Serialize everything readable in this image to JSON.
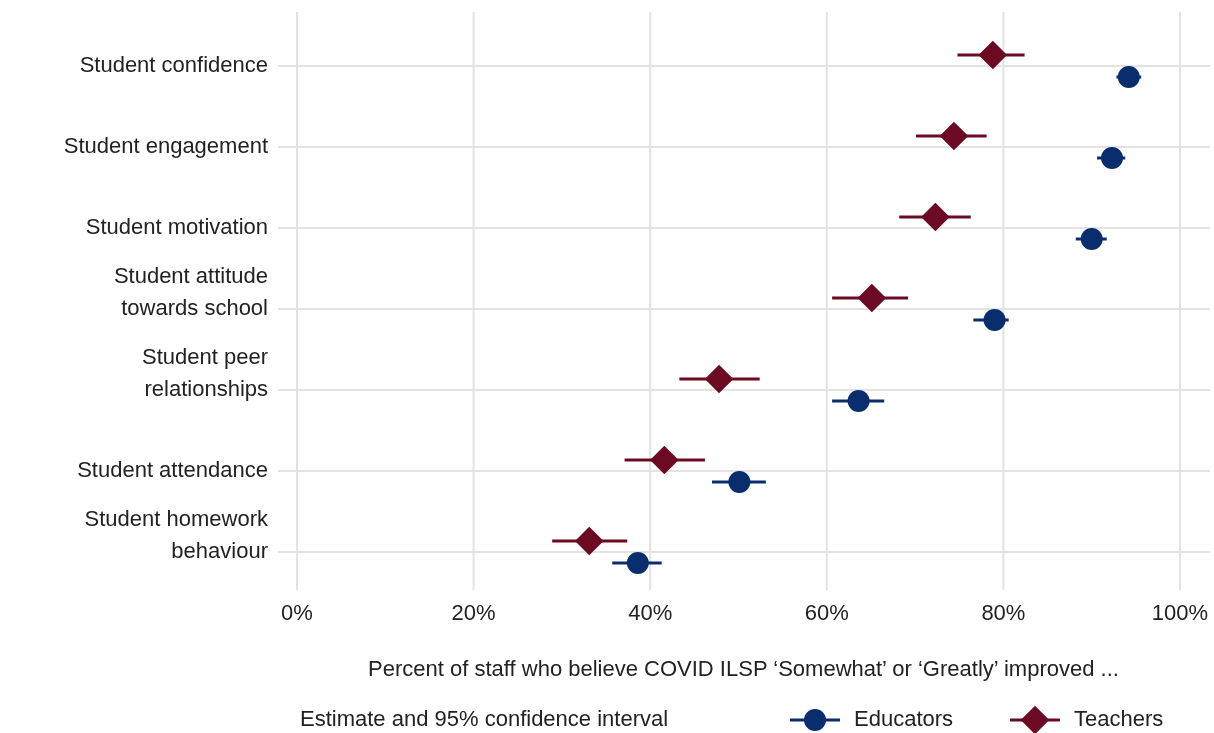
{
  "chart_data": {
    "type": "scatter",
    "orientation": "horizontal",
    "categories": [
      "Student confidence",
      "Student engagement",
      "Student motivation",
      "Student attitude towards school",
      "Student peer relationships",
      "Student attendance",
      "Student homework behaviour"
    ],
    "series": [
      {
        "name": "Educators",
        "color": "#0a2d6e",
        "marker": "circle",
        "values": [
          94.2,
          92.3,
          90.0,
          79.0,
          63.6,
          50.1,
          38.6
        ],
        "errors": [
          [
            92.8,
            95.6
          ],
          [
            90.6,
            93.8
          ],
          [
            88.2,
            91.7
          ],
          [
            76.6,
            80.6
          ],
          [
            60.6,
            66.5
          ],
          [
            47.0,
            53.1
          ],
          [
            35.7,
            41.3
          ]
        ]
      },
      {
        "name": "Teachers",
        "color": "#6b0a22",
        "marker": "diamond",
        "values": [
          78.8,
          74.4,
          72.3,
          65.1,
          47.8,
          41.6,
          33.1
        ],
        "errors": [
          [
            74.8,
            82.4
          ],
          [
            70.1,
            78.1
          ],
          [
            68.2,
            76.3
          ],
          [
            60.6,
            69.2
          ],
          [
            43.3,
            52.4
          ],
          [
            37.1,
            46.2
          ],
          [
            28.9,
            37.4
          ]
        ]
      }
    ],
    "xlim": [
      0,
      100
    ],
    "xticks": [
      {
        "value": 0,
        "label": "0%"
      },
      {
        "value": 20,
        "label": "20%"
      },
      {
        "value": 40,
        "label": "40%"
      },
      {
        "value": 60,
        "label": "60%"
      },
      {
        "value": 80,
        "label": "80%"
      },
      {
        "value": 100,
        "label": "100%"
      }
    ],
    "xlabel": "Percent of staff who believe COVID ILSP ‘Somewhat’ or ‘Greatly’ improved ...",
    "legend_title": "Estimate and 95% confidence interval",
    "legend": "bottom",
    "grid": true
  }
}
